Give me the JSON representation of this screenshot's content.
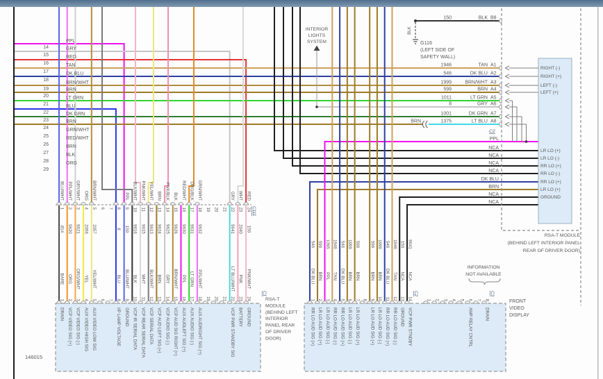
{
  "chrome": {
    "part_number": "146015",
    "header_top": "#50708f",
    "header_bottom": "#8099b0",
    "module_box_fill": "#dcebf7",
    "module_box_stroke": "#9ab0c2",
    "line_gray": "#999999",
    "text_gray": "#585858"
  },
  "colors": {
    "PPL": "#f012f0",
    "GRY": "#c6c6c6",
    "RED": "#e63232",
    "TAN": "#cba05e",
    "DK BLU": "#2f3f9e",
    "BRN/WHT": "#b08d3c",
    "BRN": "#9c7b26",
    "LT GRN": "#2fd42f",
    "BLU": "#2a35e6",
    "DK GRN": "#2e7d32",
    "GRN/WHT": "#7cc47c",
    "RED/WHT": "#ef8787",
    "BLK": "#333333",
    "ORG": "#f59225",
    "BLU/WHT": "#5a64e8",
    "PPL/WHT": "#f46cf4",
    "GRY/WHT": "#cfcfcf",
    "BLK/WHT": "#7a7a7a",
    "PNK/WHT": "#f6b4c8",
    "YEL/WHT": "#ede77e",
    "PNK/BLK": "#ef8fb0",
    "ORG/BLK": "#df8c2a",
    "WHT": "#d9d9d9",
    "YEL": "#f2e93c",
    "ORG/WHT": "#f6a54e",
    "BARE": "#4d4d4d",
    "LT BLU/WHT": "#49d6de",
    "PNK": "#f6a0ba",
    "LT BLU": "#3fd9e8",
    "NCA": "#1f1f1f"
  },
  "left_pins": [
    {
      "pin": "14",
      "color": "PPL"
    },
    {
      "pin": "15",
      "color": "GRY"
    },
    {
      "pin": "16",
      "color": "RED"
    },
    {
      "pin": "17",
      "color": "TAN"
    },
    {
      "pin": "18",
      "color": "DK BLU"
    },
    {
      "pin": "19",
      "color": "BRN/WHT"
    },
    {
      "pin": "20",
      "color": "BRN"
    },
    {
      "pin": "21",
      "color": "LT GRN"
    },
    {
      "pin": "22",
      "color": "BLU"
    },
    {
      "pin": "23",
      "color": "DK GRN"
    },
    {
      "pin": "24",
      "color": "BRN"
    },
    {
      "pin": "25",
      "color": "GRN/WHT"
    },
    {
      "pin": "26",
      "color": "RED/WHT"
    },
    {
      "pin": "27",
      "color": "BRN"
    },
    {
      "pin": "28",
      "color": "BLK"
    },
    {
      "pin": "29",
      "color": "ORG"
    }
  ],
  "interior_lights_lines": [
    "INTERIOR",
    "LIGHTS",
    "SYSTEM"
  ],
  "ground": {
    "id": "G116",
    "wire_color": "BLK",
    "location_lines": [
      "(LEFT SIDE OF",
      "SAFETY WALL)"
    ]
  },
  "top_module": {
    "connector_id": "C2",
    "b_row": {
      "circuit": "150",
      "color": "BLK",
      "pin": "B8"
    },
    "rows": [
      {
        "prefix": "",
        "circuit": "1946",
        "color": "TAN",
        "pin": "A1"
      },
      {
        "prefix": "",
        "circuit": "546",
        "color": "DK BLU",
        "pin": "A2"
      },
      {
        "prefix": "",
        "circuit": "1999",
        "color": "BRN/WHT",
        "pin": "A3"
      },
      {
        "prefix": "",
        "circuit": "599",
        "color": "BRN",
        "pin": "A4"
      },
      {
        "prefix": "",
        "circuit": "1011",
        "color": "LT GRN",
        "pin": "A5"
      },
      {
        "prefix": "",
        "circuit": "8",
        "color": "GRY",
        "pin": "A6"
      },
      {
        "prefix": "",
        "circuit": "1001",
        "color": "DK GRN",
        "pin": "A7"
      },
      {
        "prefix": "BRN",
        "circuit": "1375",
        "color": "LT BLU",
        "pin": "A8"
      }
    ],
    "box_upper": [
      "RIGHT (-)",
      "RIGHT (+)",
      "LEFT (-)",
      "LEFT (+)"
    ],
    "box_lower": [
      "LR LO (+)",
      "LR LO (-)",
      "RR LO (+)",
      "RR LO (-)",
      "RR LO (+)",
      "LR LO (+)",
      "GROUND"
    ],
    "mid_labels": [
      "PPL",
      "NCA",
      "NCA",
      "NCA",
      "NCA",
      "DK BLU",
      "BRN",
      "NCA",
      "NCA"
    ],
    "caption_lines": [
      "RSA-T MODULE",
      "(BEHIND LEFT INTERIOR PANEL",
      "REAR OF DRIVER DOOR)"
    ]
  },
  "c111": {
    "id": "C111",
    "pins": [
      {
        "pin": "1",
        "top": "BLU/WHT",
        "circuit": "814",
        "color": "BARE"
      },
      {
        "pin": "2",
        "top": "PPL/WHT",
        "circuit": "9620",
        "color": "ORG"
      },
      {
        "pin": "3",
        "top": "GRY/WHT",
        "circuit": "9621",
        "color": "ORG/WHT"
      },
      {
        "pin": "4",
        "top": "ORG",
        "circuit": "2056",
        "color": "YEL"
      },
      {
        "pin": "5",
        "top": "BRN/WHT",
        "circuit": "2057",
        "color": "YEL/WHT"
      },
      {
        "pin": "6",
        "top": "",
        "circuit": "",
        "color": ""
      },
      {
        "pin": "7",
        "top": "",
        "circuit": "",
        "color": ""
      },
      {
        "pin": "8",
        "top": "",
        "circuit": "8",
        "color": "BLU"
      },
      {
        "pin": "9",
        "top": "PPL",
        "circuit": "150",
        "color": "BLU/WHT"
      },
      {
        "pin": "10",
        "top": "BLK/WHT",
        "circuit": "9616",
        "color": "BLK"
      },
      {
        "pin": "11",
        "top": "PNK/WHT",
        "circuit": "9615",
        "color": "WHT"
      },
      {
        "pin": "12",
        "top": "YEL/WHT",
        "circuit": "9613",
        "color": "BLK/WHT"
      },
      {
        "pin": "13",
        "top": "BRN",
        "circuit": "9624",
        "color": "BRN"
      },
      {
        "pin": "14",
        "top": "PNK/BLK",
        "circuit": "9625",
        "color": "GRY"
      },
      {
        "pin": "15",
        "top": "BLK",
        "circuit": "9626",
        "color": "BRN/WHT"
      },
      {
        "pin": "16",
        "top": "RED/WHT",
        "circuit": "9630",
        "color": "PPL"
      },
      {
        "pin": "17",
        "top": "ORG/BLK",
        "circuit": "9631",
        "color": "LT GRN"
      },
      {
        "pin": "18",
        "top": "GRN/WHT",
        "circuit": "9632",
        "color": "PPL/WHT"
      },
      {
        "pin": "19",
        "top": "",
        "circuit": "",
        "color": ""
      },
      {
        "pin": "20",
        "top": "",
        "circuit": "",
        "color": ""
      },
      {
        "pin": "21",
        "top": "",
        "circuit": "",
        "color": ""
      },
      {
        "pin": "22",
        "top": "GRY",
        "circuit": "9641",
        "color": "LT BLU/WHT"
      },
      {
        "pin": "23",
        "top": "WHT",
        "circuit": "2040",
        "color": "PNK"
      },
      {
        "pin": "24",
        "top": "RED",
        "circuit": "150",
        "color": "PNK/WHT"
      }
    ]
  },
  "rsa_module": {
    "connector_id": "C1",
    "caption_lines": [
      "RSA-T",
      "MODULE",
      "(BEHIND LEFT",
      "INTERIOR",
      "PANEL REAR",
      "OF DRIVER",
      "DOOR)"
    ],
    "signals": [
      "DRAIN",
      "VCP VIDEO SIG (+)",
      "VCP VIDEO SIG (-)",
      "AUX VIDEO HIGH SIG",
      "AUX VIDEO LOW SIG",
      "",
      "",
      "I/P LAMP VOLTAGE",
      "GROUND",
      "VCP IR SERIAL DATA",
      "VCP REAR SERIAL DATA",
      "VCP SERIAL DATA",
      "VCP AUD LEFT SIG (+)",
      "VCP AUDIO SIG (-)",
      "VCP AUD SIG RIGHT (+)",
      "AUX AUDLEFT SIG (+)",
      "AUX AUDIO SIG (-)",
      "AUX AUDRIGHT SIG (+)",
      "",
      "",
      "",
      "VCP PWR STANDBY SIG",
      "BATTERY",
      "GROUND"
    ]
  },
  "front_display": {
    "caption_lines": [
      "FRONT",
      "VIDEO",
      "DISPLAY"
    ],
    "note_lines": [
      "INFORMATION",
      "NOT AVAILABLE"
    ],
    "c2": {
      "id": "C2",
      "pins": [
        {
          "pin": "1",
          "circuit": "546",
          "color": "DK BLU",
          "signal": "RR LO AUD SIG (+)"
        },
        {
          "pin": "2",
          "circuit": "599",
          "color": "BRN",
          "signal": "LR LO AUD SIG (+)"
        },
        {
          "pin": "3",
          "circuit": "1395",
          "color": "PPL",
          "signal": "LR LO AUD SIG (-)"
        },
        {
          "pin": "4",
          "circuit": "1946",
          "color": "TAN",
          "signal": "RR LO AUD SIG (-)"
        },
        {
          "pin": "5",
          "circuit": "546",
          "color": "DK BLU",
          "signal": "RR LO AUD SIG (+)"
        },
        {
          "pin": "6",
          "circuit": "1999",
          "color": "BRN",
          "signal": "LR LO AUD SIG (-)"
        },
        {
          "pin": "7",
          "circuit": "599",
          "color": "BRN",
          "signal": "LR LO AUD SIG (+)"
        },
        {
          "pin": "8",
          "circuit": "",
          "color": "",
          "signal": ""
        },
        {
          "pin": "9",
          "circuit": "599",
          "color": "BRN",
          "signal": "LR LO AUD SIG (+)"
        },
        {
          "pin": "10",
          "circuit": "1999",
          "color": "BRN",
          "signal": "LR LO AUD SIG (-)"
        },
        {
          "pin": "11",
          "circuit": "546",
          "color": "DK BLU",
          "signal": "RR LO AUD SIG (+)"
        },
        {
          "pin": "12",
          "circuit": "1946",
          "color": "TAN",
          "signal": "RR LO AUD SIG (-)"
        },
        {
          "pin": "13",
          "circuit": "150",
          "color": "NCA",
          "signal": "GROUND"
        },
        {
          "pin": "14",
          "circuit": "9641",
          "color": "NCA",
          "signal": "VCP PWR STNDBY"
        }
      ]
    },
    "c3": {
      "id": "C3",
      "pins": [
        {
          "pin": "1",
          "signal": ""
        },
        {
          "pin": "2",
          "signal": ""
        },
        {
          "pin": "3",
          "signal": ""
        },
        {
          "pin": "4",
          "signal": ""
        },
        {
          "pin": "5",
          "signal": ""
        },
        {
          "pin": "6",
          "signal": "AMP RELAY CNTRL"
        },
        {
          "pin": "7",
          "signal": ""
        },
        {
          "pin": "8",
          "signal": "DRAIN"
        }
      ]
    }
  }
}
